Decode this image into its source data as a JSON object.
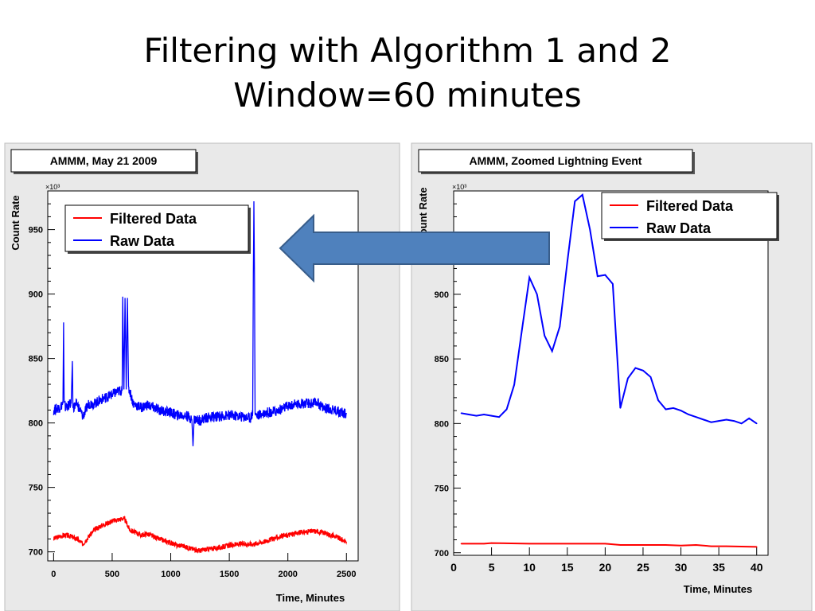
{
  "slide": {
    "title_line1": "Filtering with Algorithm 1 and 2",
    "title_line2": "Window=60 minutes"
  },
  "colors": {
    "filtered": "#ff0000",
    "raw": "#0000ff",
    "arrow_fill": "#4f81bd",
    "arrow_stroke": "#385d8a"
  },
  "chart_data": [
    {
      "type": "line",
      "title": "AMMM, May 21 2009",
      "xlabel": "Time, Minutes",
      "ylabel": "Count Rate",
      "y_multiplier": "×10³",
      "xlim": [
        -50,
        2600
      ],
      "ylim": [
        693,
        980
      ],
      "xticks": [
        0,
        500,
        1000,
        1500,
        2000,
        2500
      ],
      "yticks": [
        700,
        750,
        800,
        850,
        900,
        950
      ],
      "legend": {
        "position": "top-left",
        "entries": [
          "Filtered Data",
          "Raw Data"
        ]
      },
      "series": [
        {
          "name": "Raw Data",
          "color": "#0000ff",
          "x": [
            0,
            50,
            80,
            85,
            90,
            100,
            150,
            160,
            165,
            170,
            200,
            250,
            300,
            350,
            400,
            450,
            500,
            560,
            585,
            590,
            600,
            610,
            620,
            630,
            640,
            650,
            680,
            700,
            750,
            800,
            900,
            1000,
            1050,
            1100,
            1150,
            1180,
            1190,
            1200,
            1250,
            1300,
            1400,
            1500,
            1600,
            1680,
            1700,
            1705,
            1710,
            1715,
            1720,
            1730,
            1750,
            1800,
            1900,
            2000,
            2100,
            2200,
            2250,
            2300,
            2400,
            2500
          ],
          "y": [
            810,
            812,
            815,
            878,
            815,
            812,
            815,
            848,
            815,
            812,
            815,
            805,
            815,
            815,
            818,
            820,
            822,
            825,
            825,
            898,
            826,
            897,
            826,
            897,
            826,
            825,
            815,
            814,
            812,
            814,
            810,
            808,
            806,
            806,
            805,
            803,
            782,
            803,
            802,
            804,
            805,
            806,
            805,
            804,
            808,
            915,
            972,
            910,
            808,
            806,
            806,
            808,
            809,
            813,
            815,
            815,
            816,
            812,
            810,
            807
          ]
        },
        {
          "name": "Filtered Data",
          "color": "#ff0000",
          "x": [
            0,
            50,
            100,
            150,
            200,
            250,
            300,
            350,
            400,
            450,
            500,
            550,
            600,
            620,
            650,
            700,
            750,
            800,
            900,
            1000,
            1050,
            1100,
            1150,
            1200,
            1250,
            1300,
            1400,
            1500,
            1600,
            1700,
            1800,
            1900,
            2000,
            2100,
            2200,
            2250,
            2300,
            2400,
            2500
          ],
          "y": [
            710,
            712,
            713,
            712,
            710,
            706,
            712,
            717,
            720,
            722,
            724,
            725,
            726,
            723,
            717,
            715,
            713,
            714,
            710,
            707,
            705,
            705,
            703,
            702,
            701,
            702,
            703,
            705,
            706,
            706,
            708,
            711,
            713,
            715,
            716,
            716,
            715,
            712,
            708
          ]
        }
      ]
    },
    {
      "type": "line",
      "title": "AMMM, Zoomed Lightning Event",
      "xlabel": "Time, Minutes",
      "ylabel": "Count Rate",
      "y_multiplier": "×10³",
      "xlim": [
        0,
        41.5
      ],
      "ylim": [
        698,
        980
      ],
      "xticks": [
        0,
        5,
        10,
        15,
        20,
        25,
        30,
        35,
        40
      ],
      "yticks": [
        700,
        750,
        800,
        850,
        900
      ],
      "legend": {
        "position": "top-right",
        "entries": [
          "Filtered Data",
          "Raw Data"
        ]
      },
      "series": [
        {
          "name": "Raw Data",
          "color": "#0000ff",
          "x": [
            1,
            2,
            3,
            4,
            5,
            6,
            7,
            8,
            9,
            10,
            11,
            12,
            13,
            14,
            15,
            16,
            17,
            18,
            19,
            20,
            21,
            22,
            23,
            24,
            25,
            26,
            27,
            28,
            29,
            30,
            31,
            32,
            33,
            34,
            35,
            36,
            37,
            38,
            39,
            40
          ],
          "y": [
            808,
            807,
            806,
            807,
            806,
            805,
            811,
            830,
            872,
            913,
            900,
            868,
            856,
            875,
            925,
            972,
            977,
            950,
            914,
            915,
            908,
            812,
            835,
            843,
            841,
            836,
            818,
            811,
            812,
            810,
            807,
            805,
            803,
            801,
            802,
            803,
            802,
            800,
            804,
            800
          ]
        },
        {
          "name": "Filtered Data",
          "color": "#ff0000",
          "x": [
            1,
            4,
            5,
            10,
            20,
            22,
            28,
            30,
            32,
            34,
            36,
            40
          ],
          "y": [
            707,
            707,
            707.5,
            707,
            707,
            706,
            706,
            705.5,
            706,
            705,
            705,
            704.5
          ]
        }
      ]
    }
  ]
}
